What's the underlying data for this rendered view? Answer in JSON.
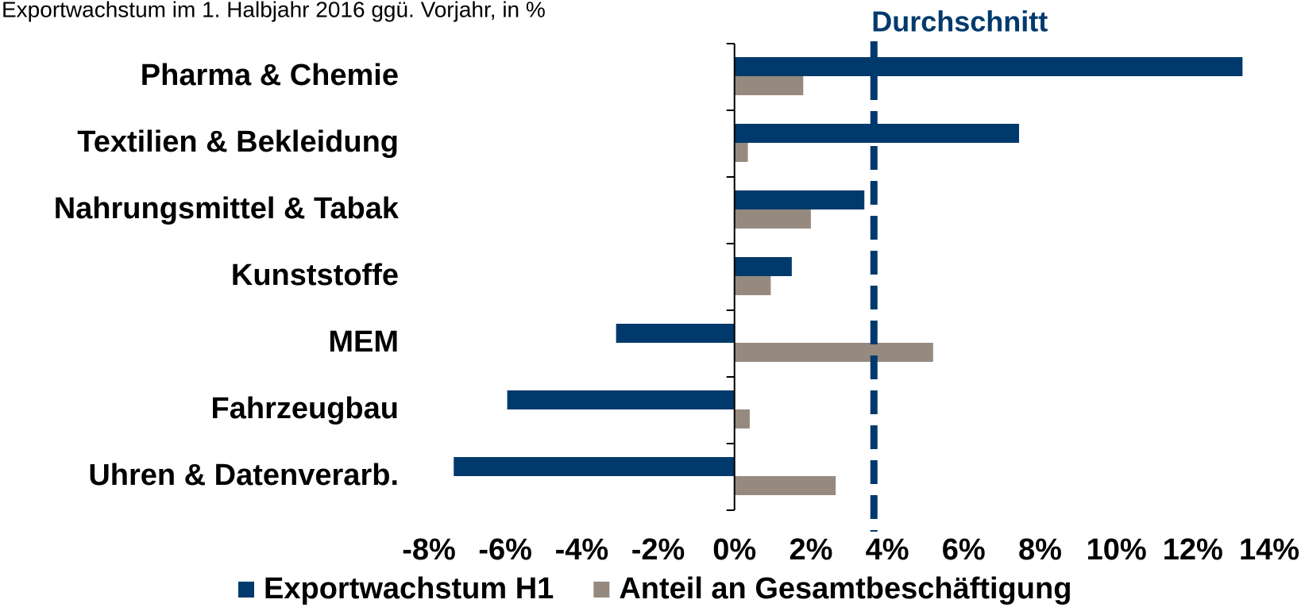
{
  "chart_data": {
    "type": "bar",
    "orientation": "horizontal",
    "title": "Exportwachstum im 1. Halbjahr 2016 ggü. Vorjahr, in %",
    "categories": [
      "Pharma & Chemie",
      "Textilien & Bekleidung",
      "Nahrungsmittel & Tabak",
      "Kunststoffe",
      "MEM",
      "Fahrzeugbau",
      "Uhren & Datenverarb."
    ],
    "series": [
      {
        "name": "Exportwachstum H1",
        "color": "#003a6c",
        "values": [
          13.3,
          7.45,
          3.4,
          1.5,
          -3.1,
          -5.95,
          -7.35
        ]
      },
      {
        "name": "Anteil an Gesamtbeschäftigung",
        "color": "#968a80",
        "values": [
          1.8,
          0.35,
          2.0,
          0.95,
          5.2,
          0.4,
          2.65
        ]
      }
    ],
    "reference_line": {
      "label": "Durchschnitt",
      "value": 3.65,
      "color": "#003a6c"
    },
    "xlim": [
      -8,
      14
    ],
    "xticks": [
      {
        "value": -8,
        "label": "-8%"
      },
      {
        "value": -6,
        "label": "-6%"
      },
      {
        "value": -4,
        "label": "-4%"
      },
      {
        "value": -2,
        "label": "-2%"
      },
      {
        "value": 0,
        "label": "0%"
      },
      {
        "value": 2,
        "label": "2%"
      },
      {
        "value": 4,
        "label": "4%"
      },
      {
        "value": 6,
        "label": "6%"
      },
      {
        "value": 8,
        "label": "8%"
      },
      {
        "value": 10,
        "label": "10%"
      },
      {
        "value": 12,
        "label": "12%"
      },
      {
        "value": 14,
        "label": "14%"
      }
    ],
    "legend": "bottom"
  }
}
